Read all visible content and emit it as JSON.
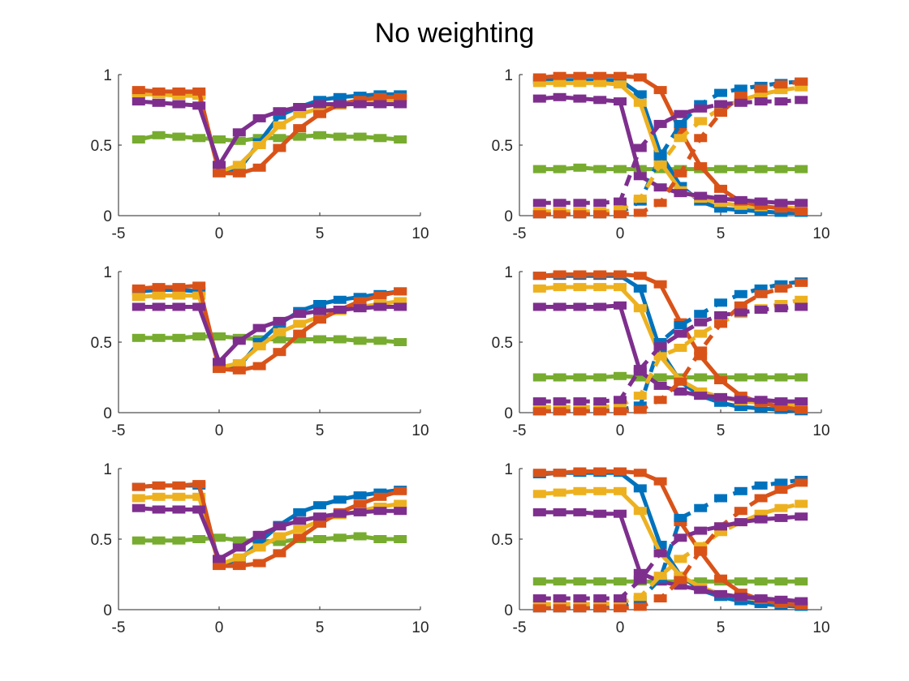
{
  "title": "No weighting",
  "colors": {
    "blue": "#0072BD",
    "orange": "#D95319",
    "yellow": "#EDB120",
    "purple": "#7E2F8E",
    "green": "#77AC30"
  },
  "chart_data": [
    {
      "type": "line",
      "grid": false,
      "xlim": [
        -5,
        10
      ],
      "ylim": [
        0,
        1
      ],
      "xticks": [
        "-5",
        "0",
        "5",
        "10"
      ],
      "yticks": [
        "0",
        "0.5",
        "1"
      ],
      "x": [
        -4,
        -3,
        -2,
        -1,
        0,
        1,
        2,
        3,
        4,
        5,
        6,
        7,
        8,
        9
      ],
      "series": [
        {
          "color": "green",
          "style": "solid",
          "values": [
            0.54,
            0.57,
            0.56,
            0.55,
            0.54,
            0.53,
            0.55,
            0.55,
            0.56,
            0.57,
            0.56,
            0.56,
            0.55,
            0.54
          ]
        },
        {
          "color": "blue",
          "style": "solid",
          "values": [
            0.87,
            0.87,
            0.86,
            0.86,
            0.31,
            0.33,
            0.52,
            0.71,
            0.77,
            0.82,
            0.84,
            0.85,
            0.86,
            0.86
          ]
        },
        {
          "color": "yellow",
          "style": "solid",
          "values": [
            0.86,
            0.86,
            0.85,
            0.85,
            0.31,
            0.36,
            0.5,
            0.64,
            0.72,
            0.76,
            0.78,
            0.8,
            0.81,
            0.82
          ]
        },
        {
          "color": "orange",
          "style": "solid",
          "values": [
            0.89,
            0.88,
            0.88,
            0.88,
            0.3,
            0.3,
            0.34,
            0.48,
            0.62,
            0.72,
            0.79,
            0.82,
            0.84,
            0.84
          ]
        },
        {
          "color": "purple",
          "style": "solid",
          "values": [
            0.81,
            0.8,
            0.79,
            0.78,
            0.36,
            0.59,
            0.69,
            0.74,
            0.77,
            0.79,
            0.79,
            0.79,
            0.79,
            0.79
          ]
        }
      ]
    },
    {
      "type": "line",
      "grid": false,
      "xlim": [
        -5,
        10
      ],
      "ylim": [
        0,
        1
      ],
      "xticks": [
        "-5",
        "0",
        "5",
        "10"
      ],
      "yticks": [
        "0",
        "0.5",
        "1"
      ],
      "x": [
        -4,
        -3,
        -2,
        -1,
        0,
        1,
        2,
        3,
        4,
        5,
        6,
        7,
        8,
        9
      ],
      "series": [
        {
          "color": "green",
          "style": "solid",
          "values": [
            0.33,
            0.33,
            0.34,
            0.33,
            0.33,
            0.33,
            0.33,
            0.33,
            0.33,
            0.33,
            0.33,
            0.33,
            0.33,
            0.33
          ]
        },
        {
          "color": "blue",
          "style": "solid",
          "values": [
            0.96,
            0.96,
            0.96,
            0.96,
            0.96,
            0.86,
            0.44,
            0.21,
            0.1,
            0.05,
            0.04,
            0.03,
            0.02,
            0.02
          ]
        },
        {
          "color": "yellow",
          "style": "solid",
          "values": [
            0.94,
            0.94,
            0.94,
            0.94,
            0.93,
            0.8,
            0.38,
            0.18,
            0.12,
            0.09,
            0.07,
            0.06,
            0.06,
            0.05
          ]
        },
        {
          "color": "orange",
          "style": "solid",
          "values": [
            0.98,
            0.99,
            0.99,
            0.99,
            0.99,
            0.98,
            0.89,
            0.6,
            0.35,
            0.19,
            0.1,
            0.07,
            0.05,
            0.03
          ]
        },
        {
          "color": "purple",
          "style": "solid",
          "values": [
            0.83,
            0.84,
            0.83,
            0.82,
            0.81,
            0.28,
            0.2,
            0.16,
            0.14,
            0.12,
            0.11,
            0.1,
            0.09,
            0.09
          ]
        },
        {
          "color": "blue",
          "style": "dashed",
          "values": [
            0.01,
            0.01,
            0.01,
            0.01,
            0.02,
            0.1,
            0.42,
            0.65,
            0.79,
            0.87,
            0.9,
            0.92,
            0.94,
            0.95
          ]
        },
        {
          "color": "yellow",
          "style": "dashed",
          "values": [
            0.03,
            0.03,
            0.03,
            0.03,
            0.04,
            0.12,
            0.36,
            0.55,
            0.67,
            0.76,
            0.82,
            0.86,
            0.89,
            0.91
          ]
        },
        {
          "color": "orange",
          "style": "dashed",
          "values": [
            0.01,
            0.01,
            0.01,
            0.01,
            0.01,
            0.02,
            0.09,
            0.3,
            0.55,
            0.73,
            0.85,
            0.9,
            0.93,
            0.95
          ]
        },
        {
          "color": "purple",
          "style": "dashed",
          "values": [
            0.09,
            0.09,
            0.09,
            0.09,
            0.1,
            0.48,
            0.65,
            0.72,
            0.76,
            0.79,
            0.8,
            0.81,
            0.81,
            0.82
          ]
        }
      ]
    },
    {
      "type": "line",
      "grid": false,
      "xlim": [
        -5,
        10
      ],
      "ylim": [
        0,
        1
      ],
      "xticks": [
        "-5",
        "0",
        "5",
        "10"
      ],
      "yticks": [
        "0",
        "0.5",
        "1"
      ],
      "x": [
        -4,
        -3,
        -2,
        -1,
        0,
        1,
        2,
        3,
        4,
        5,
        6,
        7,
        8,
        9
      ],
      "series": [
        {
          "color": "green",
          "style": "solid",
          "values": [
            0.53,
            0.53,
            0.53,
            0.54,
            0.54,
            0.53,
            0.52,
            0.52,
            0.52,
            0.52,
            0.52,
            0.51,
            0.51,
            0.5
          ]
        },
        {
          "color": "blue",
          "style": "solid",
          "values": [
            0.86,
            0.87,
            0.87,
            0.86,
            0.33,
            0.33,
            0.5,
            0.63,
            0.72,
            0.77,
            0.8,
            0.82,
            0.84,
            0.86
          ]
        },
        {
          "color": "yellow",
          "style": "solid",
          "values": [
            0.82,
            0.83,
            0.83,
            0.83,
            0.32,
            0.35,
            0.47,
            0.57,
            0.63,
            0.68,
            0.72,
            0.75,
            0.77,
            0.79
          ]
        },
        {
          "color": "orange",
          "style": "solid",
          "values": [
            0.88,
            0.89,
            0.89,
            0.9,
            0.31,
            0.3,
            0.33,
            0.43,
            0.56,
            0.66,
            0.73,
            0.79,
            0.83,
            0.86
          ]
        },
        {
          "color": "purple",
          "style": "solid",
          "values": [
            0.75,
            0.75,
            0.75,
            0.75,
            0.36,
            0.51,
            0.6,
            0.65,
            0.7,
            0.72,
            0.73,
            0.74,
            0.75,
            0.75
          ]
        }
      ]
    },
    {
      "type": "line",
      "grid": false,
      "xlim": [
        -5,
        10
      ],
      "ylim": [
        0,
        1
      ],
      "xticks": [
        "-5",
        "0",
        "5",
        "10"
      ],
      "yticks": [
        "0",
        "0.5",
        "1"
      ],
      "x": [
        -4,
        -3,
        -2,
        -1,
        0,
        1,
        2,
        3,
        4,
        5,
        6,
        7,
        8,
        9
      ],
      "series": [
        {
          "color": "green",
          "style": "solid",
          "values": [
            0.25,
            0.25,
            0.25,
            0.25,
            0.26,
            0.25,
            0.25,
            0.25,
            0.25,
            0.25,
            0.25,
            0.25,
            0.25,
            0.25
          ]
        },
        {
          "color": "blue",
          "style": "solid",
          "values": [
            0.97,
            0.97,
            0.97,
            0.97,
            0.97,
            0.88,
            0.44,
            0.22,
            0.12,
            0.07,
            0.04,
            0.03,
            0.02,
            0.01
          ]
        },
        {
          "color": "yellow",
          "style": "solid",
          "values": [
            0.88,
            0.89,
            0.89,
            0.89,
            0.89,
            0.74,
            0.4,
            0.23,
            0.15,
            0.11,
            0.08,
            0.07,
            0.06,
            0.05
          ]
        },
        {
          "color": "orange",
          "style": "solid",
          "values": [
            0.97,
            0.98,
            0.98,
            0.98,
            0.98,
            0.97,
            0.91,
            0.64,
            0.4,
            0.23,
            0.12,
            0.07,
            0.04,
            0.02
          ]
        },
        {
          "color": "purple",
          "style": "solid",
          "values": [
            0.75,
            0.75,
            0.75,
            0.75,
            0.76,
            0.29,
            0.19,
            0.15,
            0.12,
            0.11,
            0.09,
            0.09,
            0.08,
            0.08
          ]
        },
        {
          "color": "blue",
          "style": "dashed",
          "values": [
            0.01,
            0.01,
            0.01,
            0.01,
            0.02,
            0.05,
            0.5,
            0.62,
            0.7,
            0.78,
            0.84,
            0.88,
            0.91,
            0.93
          ]
        },
        {
          "color": "yellow",
          "style": "dashed",
          "values": [
            0.04,
            0.04,
            0.04,
            0.04,
            0.05,
            0.12,
            0.4,
            0.46,
            0.56,
            0.64,
            0.7,
            0.74,
            0.77,
            0.8
          ]
        },
        {
          "color": "orange",
          "style": "dashed",
          "values": [
            0.01,
            0.01,
            0.01,
            0.01,
            0.01,
            0.02,
            0.09,
            0.22,
            0.44,
            0.63,
            0.76,
            0.84,
            0.88,
            0.92
          ]
        },
        {
          "color": "purple",
          "style": "dashed",
          "values": [
            0.08,
            0.08,
            0.08,
            0.08,
            0.09,
            0.31,
            0.47,
            0.56,
            0.64,
            0.69,
            0.71,
            0.73,
            0.74,
            0.75
          ]
        }
      ]
    },
    {
      "type": "line",
      "grid": false,
      "xlim": [
        -5,
        10
      ],
      "ylim": [
        0,
        1
      ],
      "xticks": [
        "-5",
        "0",
        "5",
        "10"
      ],
      "yticks": [
        "0",
        "0.5",
        "1"
      ],
      "x": [
        -4,
        -3,
        -2,
        -1,
        0,
        1,
        2,
        3,
        4,
        5,
        6,
        7,
        8,
        9
      ],
      "series": [
        {
          "color": "green",
          "style": "solid",
          "values": [
            0.49,
            0.49,
            0.49,
            0.5,
            0.51,
            0.49,
            0.49,
            0.48,
            0.5,
            0.5,
            0.51,
            0.52,
            0.5,
            0.5
          ]
        },
        {
          "color": "blue",
          "style": "solid",
          "values": [
            0.87,
            0.88,
            0.88,
            0.88,
            0.32,
            0.35,
            0.48,
            0.6,
            0.69,
            0.74,
            0.78,
            0.81,
            0.83,
            0.85
          ]
        },
        {
          "color": "yellow",
          "style": "solid",
          "values": [
            0.79,
            0.8,
            0.8,
            0.8,
            0.32,
            0.37,
            0.44,
            0.52,
            0.57,
            0.63,
            0.67,
            0.7,
            0.73,
            0.75
          ]
        },
        {
          "color": "orange",
          "style": "solid",
          "values": [
            0.87,
            0.88,
            0.88,
            0.89,
            0.31,
            0.31,
            0.33,
            0.4,
            0.51,
            0.61,
            0.69,
            0.75,
            0.8,
            0.84
          ]
        },
        {
          "color": "purple",
          "style": "solid",
          "values": [
            0.72,
            0.71,
            0.71,
            0.71,
            0.36,
            0.44,
            0.53,
            0.59,
            0.63,
            0.66,
            0.68,
            0.69,
            0.7,
            0.7
          ]
        }
      ]
    },
    {
      "type": "line",
      "grid": false,
      "xlim": [
        -5,
        10
      ],
      "ylim": [
        0,
        1
      ],
      "xticks": [
        "-5",
        "0",
        "5",
        "10"
      ],
      "yticks": [
        "0",
        "0.5",
        "1"
      ],
      "x": [
        -4,
        -3,
        -2,
        -1,
        0,
        1,
        2,
        3,
        4,
        5,
        6,
        7,
        8,
        9
      ],
      "series": [
        {
          "color": "green",
          "style": "solid",
          "values": [
            0.2,
            0.2,
            0.2,
            0.2,
            0.2,
            0.2,
            0.2,
            0.2,
            0.2,
            0.2,
            0.2,
            0.2,
            0.2,
            0.2
          ]
        },
        {
          "color": "blue",
          "style": "solid",
          "values": [
            0.96,
            0.97,
            0.97,
            0.97,
            0.97,
            0.86,
            0.46,
            0.24,
            0.14,
            0.09,
            0.06,
            0.04,
            0.03,
            0.02
          ]
        },
        {
          "color": "yellow",
          "style": "solid",
          "values": [
            0.82,
            0.83,
            0.84,
            0.84,
            0.84,
            0.7,
            0.4,
            0.24,
            0.16,
            0.11,
            0.09,
            0.07,
            0.06,
            0.05
          ]
        },
        {
          "color": "orange",
          "style": "solid",
          "values": [
            0.97,
            0.97,
            0.98,
            0.98,
            0.98,
            0.97,
            0.91,
            0.62,
            0.41,
            0.22,
            0.12,
            0.07,
            0.04,
            0.03
          ]
        },
        {
          "color": "purple",
          "style": "solid",
          "values": [
            0.69,
            0.69,
            0.69,
            0.68,
            0.68,
            0.26,
            0.2,
            0.17,
            0.14,
            0.11,
            0.09,
            0.08,
            0.07,
            0.06
          ]
        },
        {
          "color": "blue",
          "style": "dashed",
          "values": [
            0.01,
            0.01,
            0.01,
            0.01,
            0.02,
            0.07,
            0.22,
            0.65,
            0.72,
            0.79,
            0.84,
            0.88,
            0.9,
            0.92
          ]
        },
        {
          "color": "yellow",
          "style": "dashed",
          "values": [
            0.04,
            0.04,
            0.04,
            0.04,
            0.05,
            0.09,
            0.24,
            0.36,
            0.45,
            0.55,
            0.62,
            0.68,
            0.72,
            0.75
          ]
        },
        {
          "color": "orange",
          "style": "dashed",
          "values": [
            0.01,
            0.01,
            0.01,
            0.01,
            0.01,
            0.02,
            0.08,
            0.21,
            0.42,
            0.59,
            0.7,
            0.79,
            0.85,
            0.9
          ]
        },
        {
          "color": "purple",
          "style": "dashed",
          "values": [
            0.08,
            0.08,
            0.08,
            0.08,
            0.08,
            0.21,
            0.4,
            0.51,
            0.56,
            0.59,
            0.62,
            0.64,
            0.65,
            0.66
          ]
        }
      ]
    }
  ]
}
